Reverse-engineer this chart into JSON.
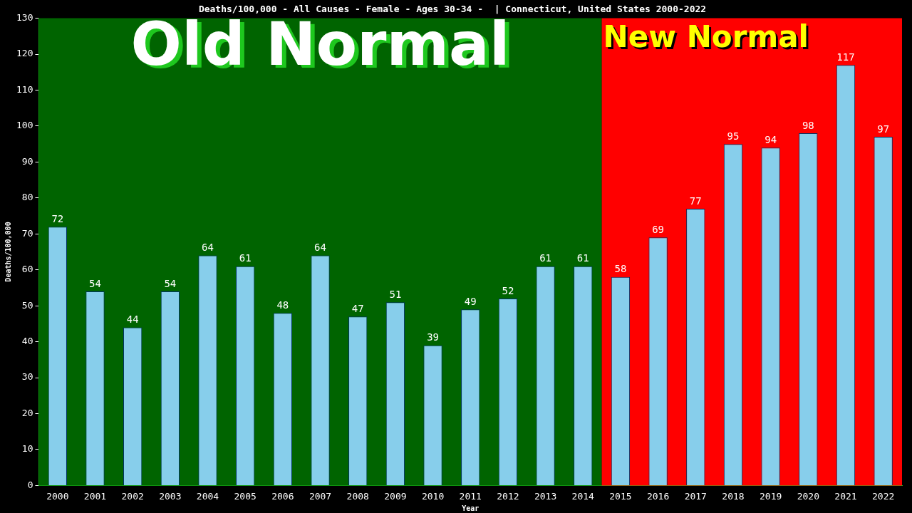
{
  "chart_data": {
    "type": "bar",
    "title": "Deaths/100,000 - All Causes - Female - Ages 30-34 -  | Connecticut, United States 2000-2022",
    "xlabel": "Year",
    "ylabel": "Deaths/100,000",
    "categories": [
      "2000",
      "2001",
      "2002",
      "2003",
      "2004",
      "2005",
      "2006",
      "2007",
      "2008",
      "2009",
      "2010",
      "2011",
      "2012",
      "2013",
      "2014",
      "2015",
      "2016",
      "2017",
      "2018",
      "2019",
      "2020",
      "2021",
      "2022"
    ],
    "values": [
      72,
      54,
      44,
      54,
      64,
      61,
      48,
      64,
      47,
      51,
      39,
      49,
      52,
      61,
      61,
      58,
      69,
      77,
      95,
      94,
      98,
      117,
      97
    ],
    "color": "#87ceeb",
    "data_labels": true,
    "ylim": [
      0,
      130
    ],
    "yticks": [
      0,
      10,
      20,
      30,
      40,
      50,
      60,
      70,
      80,
      90,
      100,
      110,
      120,
      130
    ],
    "grid": false,
    "legend": false,
    "bands": [
      {
        "axis": "x",
        "from": "2000",
        "to": "2014",
        "label": "Old Normal",
        "color": "#006400"
      },
      {
        "axis": "x",
        "from": "2015",
        "to": "2022",
        "label": "New Normal",
        "color": "#ff0000"
      }
    ]
  }
}
